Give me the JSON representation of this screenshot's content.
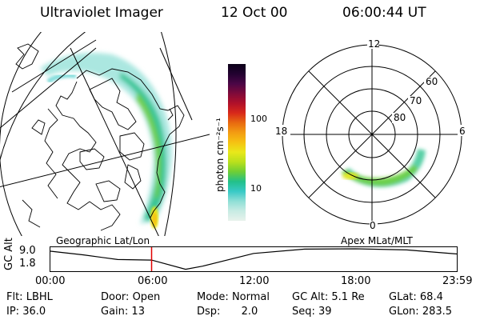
{
  "header": {
    "instrument": "Ultraviolet Imager",
    "date": "12 Oct 00",
    "time": "06:00:44 UT"
  },
  "colorbar": {
    "unit_label": "photon cm⁻²s⁻¹",
    "ticks": [
      "100",
      "10"
    ],
    "colors": [
      "#e8f2ec",
      "#c7ebe3",
      "#8fdfd6",
      "#38c9c6",
      "#22c08a",
      "#6fce35",
      "#b9e01c",
      "#e9e81a",
      "#f6c212",
      "#f39c12",
      "#e86a10",
      "#d8281a",
      "#b0102a",
      "#7e0a3a",
      "#4a0646",
      "#220230",
      "#0b0018"
    ]
  },
  "labels": {
    "left_map": "Geographic Lat/Lon",
    "right_map": "Apex MLat/MLT"
  },
  "polar": {
    "mlt_labels": [
      "12",
      "18",
      "6",
      "0"
    ],
    "mlat_labels": [
      "60",
      "70",
      "80"
    ]
  },
  "altitude_plot": {
    "ylabel": "GC Alt",
    "yticks": [
      "9.0",
      "1.8"
    ],
    "xticks": [
      "00:00",
      "06:00",
      "12:00",
      "18:00",
      "23:59"
    ],
    "current_time_marker_hours": 6.0,
    "altitude_re_samples": [
      {
        "h": 0,
        "alt": 8.2
      },
      {
        "h": 2,
        "alt": 6.9
      },
      {
        "h": 4,
        "alt": 5.3
      },
      {
        "h": 6,
        "alt": 5.1
      },
      {
        "h": 8,
        "alt": 1.9
      },
      {
        "h": 9,
        "alt": 3.0
      },
      {
        "h": 12,
        "alt": 7.4
      },
      {
        "h": 15,
        "alt": 8.9
      },
      {
        "h": 18,
        "alt": 9.0
      },
      {
        "h": 21,
        "alt": 8.6
      },
      {
        "h": 23.98,
        "alt": 7.2
      }
    ]
  },
  "status": {
    "flt_label": "Flt:",
    "flt_value": "LBHL",
    "door_label": "Door:",
    "door_value": "Open",
    "mode_label": "Mode:",
    "mode_value": "Normal",
    "gcalt_label": "GC Alt:",
    "gcalt_value": "5.1 Re",
    "glat_label": "GLat:",
    "glat_value": "68.4",
    "ip_label": "IP:",
    "ip_value": "36.0",
    "gain_label": "Gain:",
    "gain_value": "13",
    "dsp_label": "Dsp:",
    "dsp_value": "2.0",
    "seq_label": "Seq:",
    "seq_value": "39",
    "glon_label": "GLon:",
    "glon_value": "283.5"
  }
}
